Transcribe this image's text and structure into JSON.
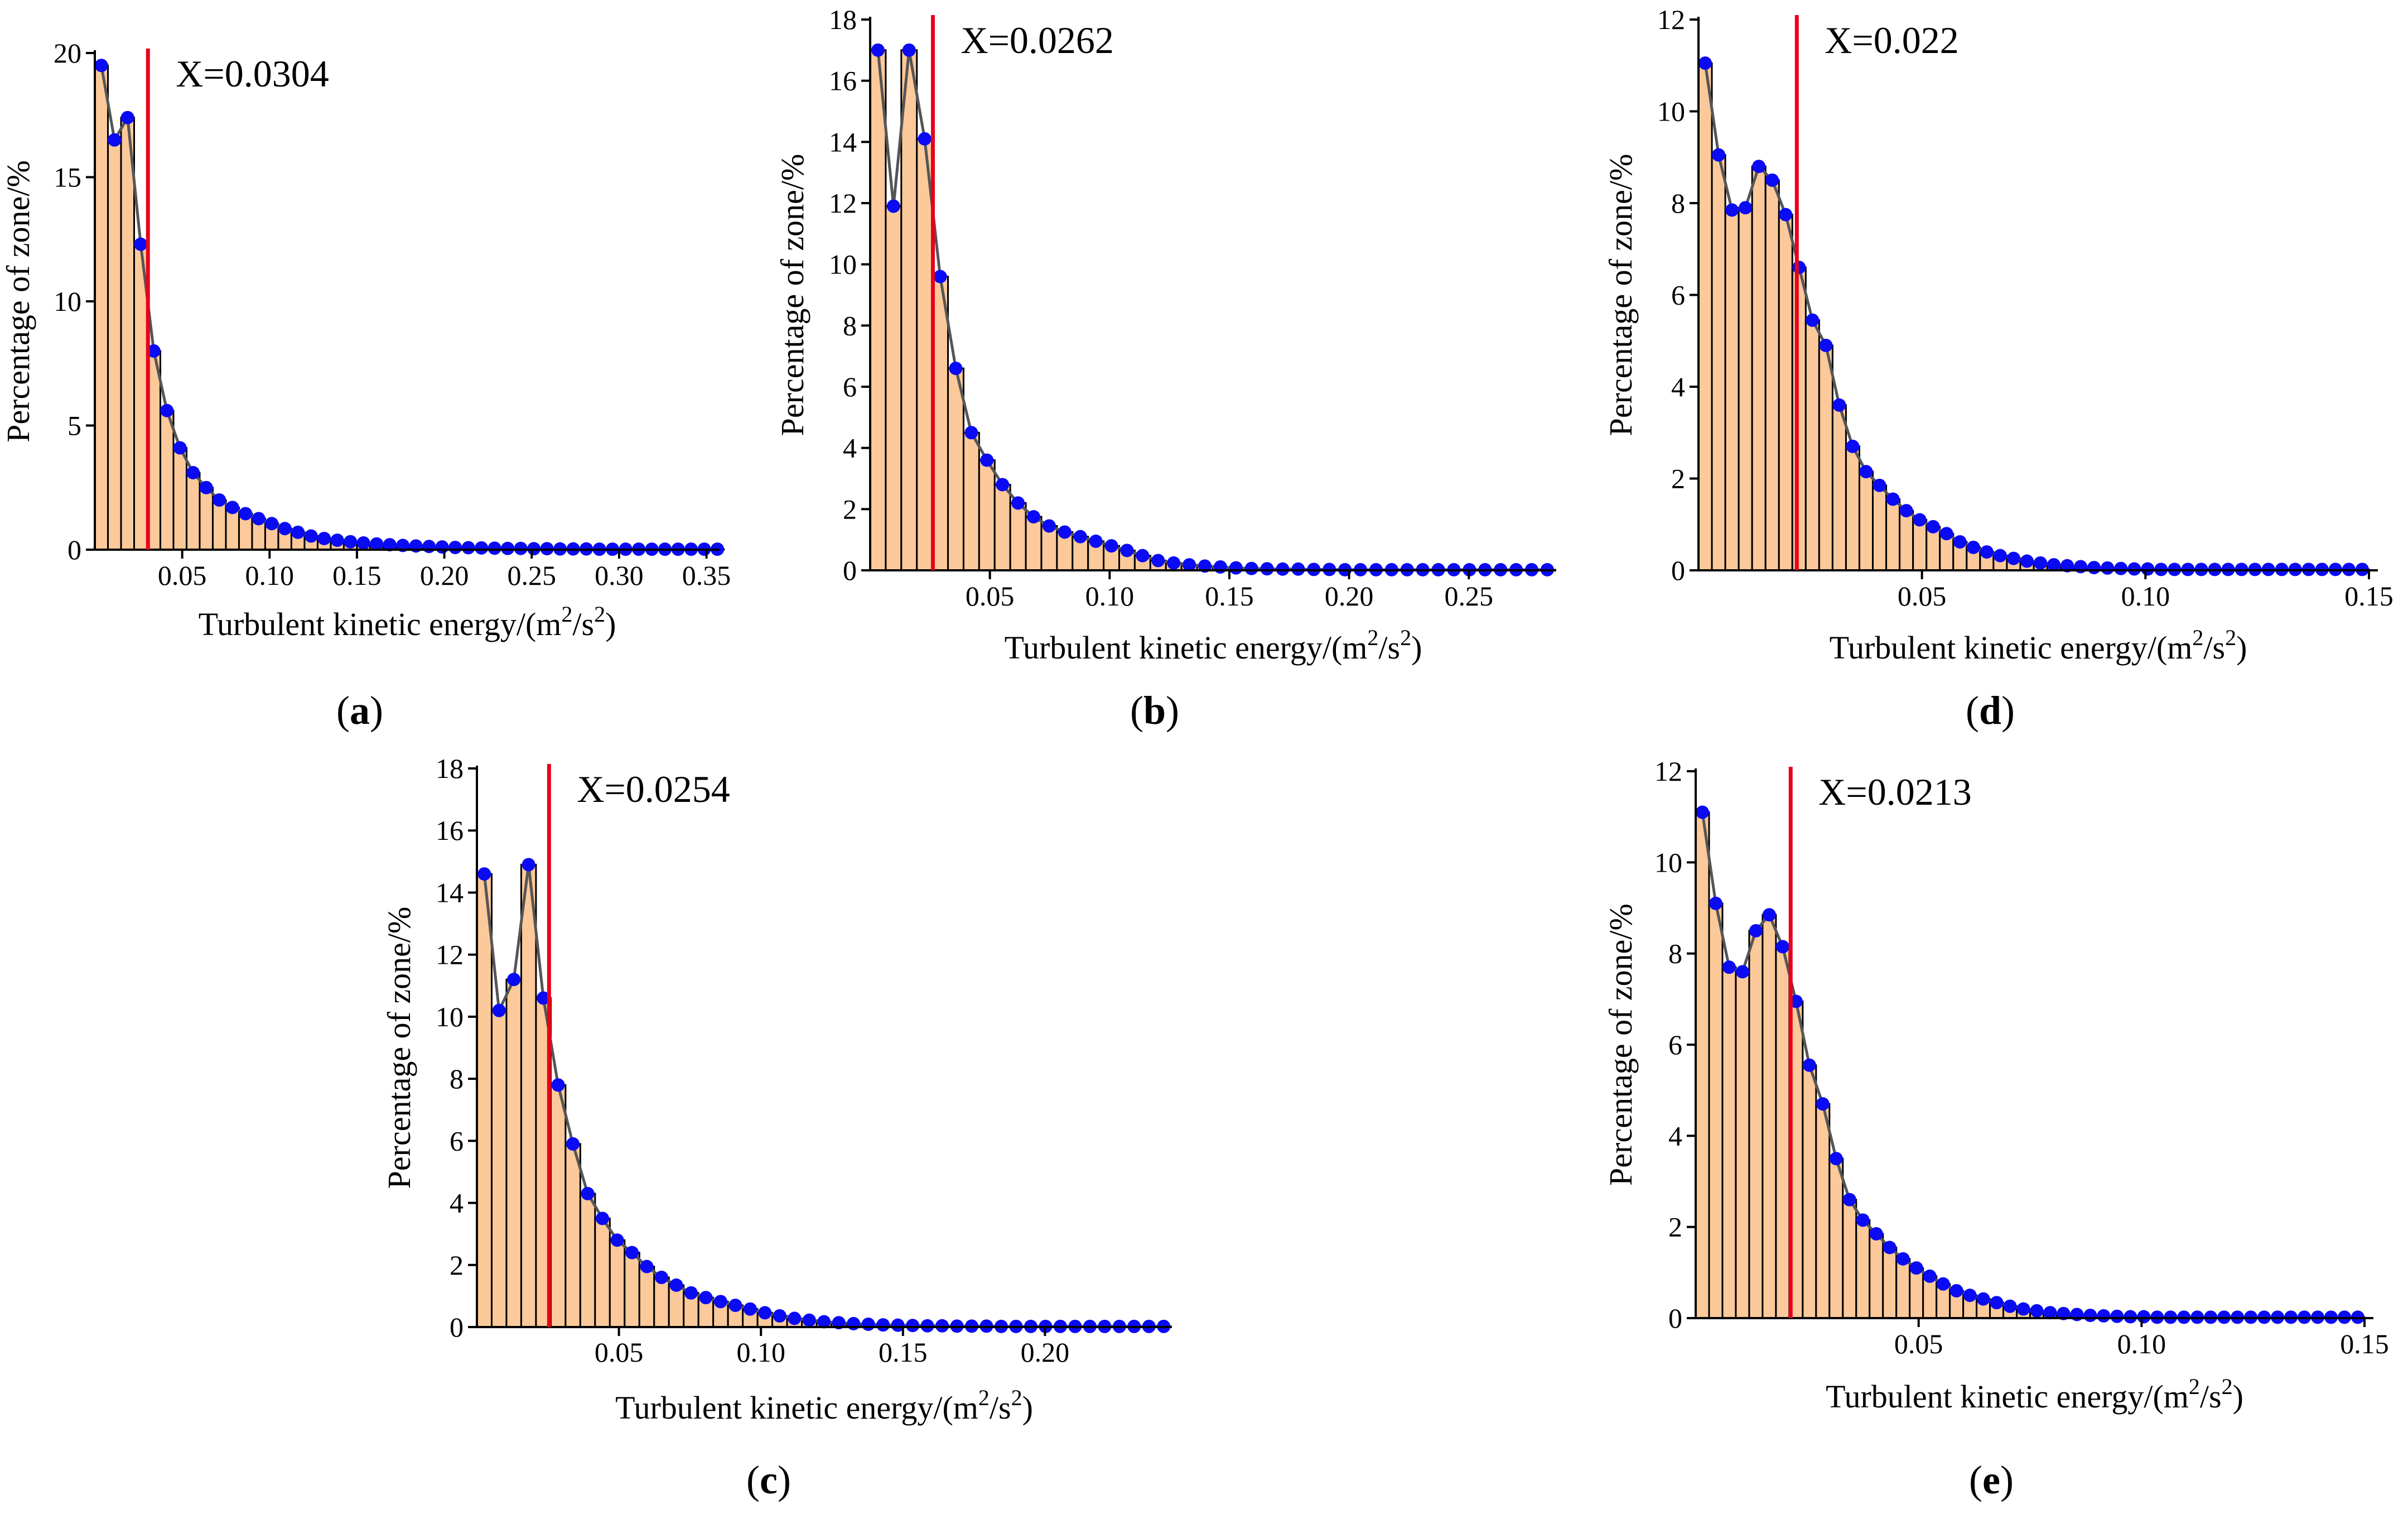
{
  "figure": {
    "xlabel": "Turbulent kinetic energy/(m",
    "xlabel_sup1": "2",
    "xlabel_mid": "/s",
    "xlabel_sup2": "2",
    "xlabel_end": ")",
    "ylabel": "Percentage of  zone/%"
  },
  "colors": {
    "bar_fill": "#FBC99A",
    "bar_edge": "#000000",
    "line": "#555555",
    "dot": "#0A0AF5",
    "marker": "#E8001A"
  },
  "chart_data": [
    {
      "type": "bar",
      "panel": "(a)",
      "panel_letter": "a",
      "marker_x": 0.0304,
      "marker_label": "X=0.0304",
      "bin_width": 0.0075,
      "xlim": [
        0,
        0.3575
      ],
      "ylim": [
        0,
        20
      ],
      "yticks": [
        "0",
        "5",
        "10",
        "15",
        "20"
      ],
      "xticks": [
        "0.05",
        "0.10",
        "0.15",
        "0.20",
        "0.25",
        "0.30",
        "0.35"
      ],
      "xtick_values": [
        0.05,
        0.1,
        0.15,
        0.2,
        0.25,
        0.3,
        0.35
      ],
      "values": [
        19.5,
        16.5,
        17.4,
        12.3,
        8.0,
        5.6,
        4.1,
        3.1,
        2.5,
        2.0,
        1.7,
        1.45,
        1.25,
        1.05,
        0.85,
        0.7,
        0.55,
        0.45,
        0.38,
        0.32,
        0.27,
        0.23,
        0.2,
        0.17,
        0.15,
        0.13,
        0.11,
        0.09,
        0.08,
        0.07,
        0.06,
        0.05,
        0.05,
        0.04,
        0.04,
        0.03,
        0.03,
        0.03,
        0.02,
        0.02,
        0.02,
        0.02,
        0.02,
        0.02,
        0.02,
        0.02,
        0.02,
        0.02
      ]
    },
    {
      "type": "bar",
      "panel": "(b)",
      "panel_letter": "b",
      "marker_x": 0.0262,
      "marker_label": "X=0.0262",
      "bin_width": 0.0065,
      "xlim": [
        0,
        0.2865
      ],
      "ylim": [
        0,
        18
      ],
      "yticks": [
        "0",
        "2",
        "4",
        "6",
        "8",
        "10",
        "12",
        "14",
        "16",
        "18"
      ],
      "xticks": [
        "0.05",
        "0.10",
        "0.15",
        "0.20",
        "0.25"
      ],
      "xtick_values": [
        0.05,
        0.1,
        0.15,
        0.2,
        0.25
      ],
      "values": [
        17.0,
        11.9,
        17.0,
        14.1,
        9.6,
        6.6,
        4.5,
        3.6,
        2.8,
        2.2,
        1.75,
        1.45,
        1.25,
        1.1,
        0.95,
        0.8,
        0.65,
        0.48,
        0.32,
        0.24,
        0.18,
        0.14,
        0.11,
        0.08,
        0.06,
        0.05,
        0.04,
        0.04,
        0.03,
        0.03,
        0.02,
        0.02,
        0.02,
        0.02,
        0.02,
        0.02,
        0.02,
        0.02,
        0.02,
        0.02,
        0.02,
        0.02,
        0.02,
        0.02
      ]
    },
    {
      "type": "bar",
      "panel": "(d)",
      "panel_letter": "d",
      "marker_x": 0.022,
      "marker_label": "X=0.022",
      "bin_width": 0.003,
      "xlim": [
        0,
        0.152
      ],
      "ylim": [
        0,
        12
      ],
      "yticks": [
        "0",
        "2",
        "4",
        "6",
        "8",
        "10",
        "12"
      ],
      "xticks": [
        "0.05",
        "0.10",
        "0.15"
      ],
      "xtick_values": [
        0.05,
        0.1,
        0.15
      ],
      "values": [
        11.05,
        9.05,
        7.85,
        7.9,
        8.8,
        8.5,
        7.75,
        6.6,
        5.45,
        4.9,
        3.6,
        2.7,
        2.15,
        1.85,
        1.55,
        1.3,
        1.1,
        0.95,
        0.8,
        0.62,
        0.5,
        0.4,
        0.32,
        0.26,
        0.2,
        0.16,
        0.12,
        0.1,
        0.08,
        0.06,
        0.05,
        0.04,
        0.03,
        0.03,
        0.02,
        0.02,
        0.02,
        0.02,
        0.02,
        0.02,
        0.02,
        0.02,
        0.02,
        0.02,
        0.02,
        0.02,
        0.02,
        0.02,
        0.02,
        0.02
      ]
    },
    {
      "type": "bar",
      "panel": "(c)",
      "panel_letter": "c",
      "marker_x": 0.0254,
      "marker_label": "X=0.0254",
      "bin_width": 0.0052,
      "xlim": [
        0,
        0.2445
      ],
      "ylim": [
        0,
        18
      ],
      "yticks": [
        "0",
        "2",
        "4",
        "6",
        "8",
        "10",
        "12",
        "14",
        "16",
        "18"
      ],
      "xticks": [
        "0.05",
        "0.10",
        "0.15",
        "0.20"
      ],
      "xtick_values": [
        0.05,
        0.1,
        0.15,
        0.2
      ],
      "values": [
        14.6,
        10.2,
        11.2,
        14.9,
        10.6,
        7.8,
        5.9,
        4.3,
        3.5,
        2.8,
        2.4,
        1.95,
        1.6,
        1.35,
        1.1,
        0.95,
        0.82,
        0.7,
        0.58,
        0.46,
        0.36,
        0.28,
        0.22,
        0.17,
        0.14,
        0.11,
        0.09,
        0.07,
        0.06,
        0.05,
        0.04,
        0.04,
        0.03,
        0.03,
        0.03,
        0.02,
        0.02,
        0.02,
        0.02,
        0.02,
        0.02,
        0.02,
        0.02,
        0.02,
        0.02,
        0.02,
        0.02
      ]
    },
    {
      "type": "bar",
      "panel": "(e)",
      "panel_letter": "e",
      "marker_x": 0.0213,
      "marker_label": "X=0.0213",
      "bin_width": 0.003,
      "xlim": [
        0,
        0.152
      ],
      "ylim": [
        0,
        12
      ],
      "yticks": [
        "0",
        "2",
        "4",
        "6",
        "8",
        "10",
        "12"
      ],
      "xticks": [
        "0.05",
        "0.10",
        "0.15"
      ],
      "xtick_values": [
        0.05,
        0.1,
        0.15
      ],
      "values": [
        11.1,
        9.1,
        7.7,
        7.6,
        8.5,
        8.85,
        8.15,
        6.95,
        5.55,
        4.7,
        3.5,
        2.6,
        2.15,
        1.85,
        1.55,
        1.3,
        1.1,
        0.92,
        0.75,
        0.6,
        0.5,
        0.42,
        0.34,
        0.26,
        0.2,
        0.16,
        0.12,
        0.1,
        0.08,
        0.06,
        0.05,
        0.04,
        0.03,
        0.03,
        0.02,
        0.02,
        0.02,
        0.02,
        0.02,
        0.02,
        0.02,
        0.02,
        0.02,
        0.02,
        0.02,
        0.02,
        0.02,
        0.02,
        0.02,
        0.02
      ]
    }
  ]
}
